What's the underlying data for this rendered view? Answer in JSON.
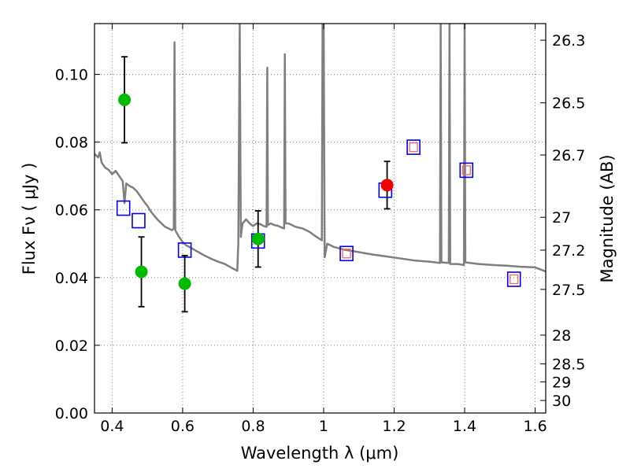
{
  "chart_data": {
    "type": "scatter",
    "xlabel": "Wavelength  λ (μm)",
    "ylabel": "Flux  Fν  ( μJy )",
    "y2label": "Magnitude (AB)",
    "xlim": [
      0.35,
      1.63
    ],
    "ylim": [
      0.0,
      0.115
    ],
    "grid": true,
    "x_ticks": [
      0.4,
      0.6,
      0.8,
      1.0,
      1.2,
      1.4,
      1.6
    ],
    "x_tick_labels": [
      "0.4",
      "0.6",
      "0.8",
      "1",
      "1.2",
      "1.4",
      "1.6"
    ],
    "y_ticks": [
      0.0,
      0.02,
      0.04,
      0.06,
      0.08,
      0.1
    ],
    "y_tick_labels": [
      "0.00",
      "0.02",
      "0.04",
      "0.06",
      "0.08",
      "0.10"
    ],
    "y2_ticks": [
      {
        "label": "26.3",
        "flux": 0.1101
      },
      {
        "label": "26.5",
        "flux": 0.0916
      },
      {
        "label": "26.7",
        "flux": 0.0762
      },
      {
        "label": "27",
        "flux": 0.0578
      },
      {
        "label": "27.2",
        "flux": 0.0481
      },
      {
        "label": "27.5",
        "flux": 0.0365
      },
      {
        "label": "28",
        "flux": 0.023
      },
      {
        "label": "28.5",
        "flux": 0.0145
      },
      {
        "label": "29",
        "flux": 0.0092
      },
      {
        "label": "30",
        "flux": 0.0037
      }
    ],
    "series": [
      {
        "name": "green detections",
        "marker": "circle",
        "color": "#00bb00",
        "points": [
          {
            "x": 0.435,
            "y": 0.0925,
            "err": 0.0127
          },
          {
            "x": 0.483,
            "y": 0.0417,
            "err": 0.0103
          },
          {
            "x": 0.606,
            "y": 0.0382,
            "err": 0.0083
          },
          {
            "x": 0.814,
            "y": 0.0514,
            "err": 0.0083
          }
        ]
      },
      {
        "name": "red detection",
        "marker": "circle",
        "color": "#ee0000",
        "points": [
          {
            "x": 1.18,
            "y": 0.0673,
            "err": 0.007
          }
        ]
      },
      {
        "name": "model band fluxes",
        "marker": "square",
        "color": "#0000ee",
        "points": [
          {
            "x": 0.432,
            "y": 0.0605
          },
          {
            "x": 0.475,
            "y": 0.0568
          },
          {
            "x": 0.606,
            "y": 0.0481
          },
          {
            "x": 0.814,
            "y": 0.0508
          },
          {
            "x": 1.065,
            "y": 0.0471
          },
          {
            "x": 1.175,
            "y": 0.0658
          },
          {
            "x": 1.255,
            "y": 0.0785
          },
          {
            "x": 1.405,
            "y": 0.0717
          },
          {
            "x": 1.54,
            "y": 0.0395
          }
        ]
      },
      {
        "name": "small red squares",
        "marker": "small-square",
        "color": "#ff6060",
        "points": [
          {
            "x": 1.065,
            "y": 0.0471
          },
          {
            "x": 1.255,
            "y": 0.0785
          },
          {
            "x": 1.405,
            "y": 0.0717
          },
          {
            "x": 1.54,
            "y": 0.0395
          }
        ]
      },
      {
        "name": "template spectrum",
        "marker": "line",
        "color": "#7f7f7f",
        "points": [
          [
            0.35,
            0.0765
          ],
          [
            0.36,
            0.0755
          ],
          [
            0.365,
            0.077
          ],
          [
            0.37,
            0.074
          ],
          [
            0.38,
            0.0725
          ],
          [
            0.39,
            0.0718
          ],
          [
            0.4,
            0.0705
          ],
          [
            0.41,
            0.0715
          ],
          [
            0.42,
            0.07
          ],
          [
            0.43,
            0.0685
          ],
          [
            0.435,
            0.062
          ],
          [
            0.44,
            0.0678
          ],
          [
            0.45,
            0.067
          ],
          [
            0.46,
            0.0665
          ],
          [
            0.47,
            0.0655
          ],
          [
            0.48,
            0.064
          ],
          [
            0.49,
            0.0625
          ],
          [
            0.5,
            0.0612
          ],
          [
            0.51,
            0.0595
          ],
          [
            0.52,
            0.0582
          ],
          [
            0.53,
            0.057
          ],
          [
            0.54,
            0.056
          ],
          [
            0.55,
            0.055
          ],
          [
            0.56,
            0.0545
          ],
          [
            0.57,
            0.054
          ],
          [
            0.575,
            0.0545
          ],
          [
            0.577,
            0.1095
          ],
          [
            0.579,
            0.054
          ],
          [
            0.59,
            0.052
          ],
          [
            0.6,
            0.0505
          ],
          [
            0.61,
            0.0495
          ],
          [
            0.62,
            0.049
          ],
          [
            0.64,
            0.0478
          ],
          [
            0.66,
            0.0466
          ],
          [
            0.68,
            0.0456
          ],
          [
            0.7,
            0.0447
          ],
          [
            0.72,
            0.044
          ],
          [
            0.74,
            0.0428
          ],
          [
            0.755,
            0.042
          ],
          [
            0.758,
            0.05
          ],
          [
            0.762,
            0.115
          ],
          [
            0.765,
            0.052
          ],
          [
            0.77,
            0.056
          ],
          [
            0.78,
            0.0572
          ],
          [
            0.79,
            0.056
          ],
          [
            0.8,
            0.0552
          ],
          [
            0.81,
            0.056
          ],
          [
            0.82,
            0.0558
          ],
          [
            0.83,
            0.0552
          ],
          [
            0.838,
            0.055
          ],
          [
            0.84,
            0.102
          ],
          [
            0.842,
            0.0555
          ],
          [
            0.85,
            0.056
          ],
          [
            0.86,
            0.0555
          ],
          [
            0.87,
            0.0553
          ],
          [
            0.88,
            0.0548
          ],
          [
            0.888,
            0.0545
          ],
          [
            0.89,
            0.106
          ],
          [
            0.892,
            0.056
          ],
          [
            0.9,
            0.056
          ],
          [
            0.92,
            0.055
          ],
          [
            0.94,
            0.0545
          ],
          [
            0.96,
            0.0535
          ],
          [
            0.98,
            0.052
          ],
          [
            0.995,
            0.051
          ],
          [
            0.997,
            0.115
          ],
          [
            1.0,
            0.115
          ],
          [
            1.003,
            0.046
          ],
          [
            1.01,
            0.05
          ],
          [
            1.03,
            0.049
          ],
          [
            1.06,
            0.0482
          ],
          [
            1.1,
            0.0475
          ],
          [
            1.14,
            0.0468
          ],
          [
            1.18,
            0.0462
          ],
          [
            1.22,
            0.0456
          ],
          [
            1.26,
            0.045
          ],
          [
            1.3,
            0.0447
          ],
          [
            1.33,
            0.0443
          ],
          [
            1.332,
            0.115
          ],
          [
            1.334,
            0.0445
          ],
          [
            1.355,
            0.0443
          ],
          [
            1.357,
            0.115
          ],
          [
            1.359,
            0.044
          ],
          [
            1.38,
            0.044
          ],
          [
            1.398,
            0.0437
          ],
          [
            1.4,
            0.115
          ],
          [
            1.402,
            0.0445
          ],
          [
            1.44,
            0.044
          ],
          [
            1.48,
            0.0437
          ],
          [
            1.52,
            0.0435
          ],
          [
            1.56,
            0.0432
          ],
          [
            1.6,
            0.043
          ],
          [
            1.63,
            0.0418
          ]
        ]
      }
    ]
  }
}
